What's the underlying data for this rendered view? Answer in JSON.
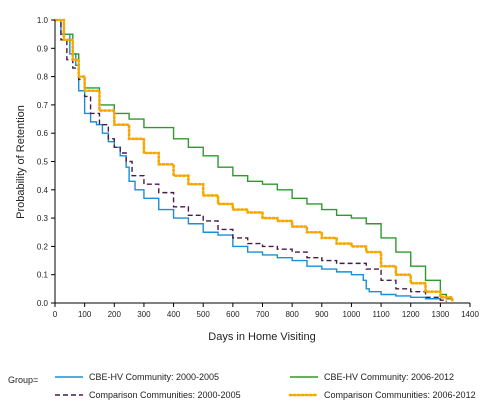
{
  "chart_data": {
    "type": "line",
    "title": "",
    "xlabel": "Days in Home Visiting",
    "ylabel": "Probability of Retention",
    "xlim": [
      0,
      1400
    ],
    "ylim": [
      0,
      1.0
    ],
    "x_ticks": [
      "0",
      "100",
      "200",
      "300",
      "400",
      "500",
      "600",
      "700",
      "800",
      "900",
      "1000",
      "1100",
      "1200",
      "1300",
      "1400"
    ],
    "y_ticks": [
      "0.0",
      "0.1",
      "0.2",
      "0.3",
      "0.4",
      "0.5",
      "0.6",
      "0.7",
      "0.8",
      "0.9",
      "1.0"
    ],
    "grid": false,
    "legend_title": "Group=",
    "legend_position": "bottom",
    "series": [
      {
        "name": "CBE-HV Community: 2000-2005",
        "color": "#1a8fd6",
        "dash": "solid",
        "points": [
          [
            0,
            1.0
          ],
          [
            20,
            0.95
          ],
          [
            50,
            0.88
          ],
          [
            70,
            0.84
          ],
          [
            80,
            0.75
          ],
          [
            100,
            0.67
          ],
          [
            120,
            0.64
          ],
          [
            140,
            0.63
          ],
          [
            160,
            0.6
          ],
          [
            180,
            0.57
          ],
          [
            200,
            0.55
          ],
          [
            220,
            0.52
          ],
          [
            240,
            0.48
          ],
          [
            250,
            0.43
          ],
          [
            270,
            0.4
          ],
          [
            300,
            0.37
          ],
          [
            350,
            0.33
          ],
          [
            400,
            0.3
          ],
          [
            450,
            0.28
          ],
          [
            500,
            0.25
          ],
          [
            550,
            0.24
          ],
          [
            600,
            0.2
          ],
          [
            650,
            0.18
          ],
          [
            700,
            0.17
          ],
          [
            750,
            0.16
          ],
          [
            800,
            0.15
          ],
          [
            850,
            0.13
          ],
          [
            900,
            0.12
          ],
          [
            950,
            0.11
          ],
          [
            1000,
            0.1
          ],
          [
            1040,
            0.08
          ],
          [
            1050,
            0.05
          ],
          [
            1060,
            0.04
          ],
          [
            1100,
            0.03
          ],
          [
            1150,
            0.025
          ],
          [
            1200,
            0.02
          ],
          [
            1250,
            0.015
          ],
          [
            1300,
            0.01
          ]
        ]
      },
      {
        "name": "CBE-HV Community: 2006-2012",
        "color": "#2e9a2e",
        "dash": "solid",
        "points": [
          [
            0,
            1.0
          ],
          [
            30,
            0.95
          ],
          [
            60,
            0.88
          ],
          [
            80,
            0.8
          ],
          [
            100,
            0.76
          ],
          [
            150,
            0.7
          ],
          [
            200,
            0.67
          ],
          [
            250,
            0.65
          ],
          [
            300,
            0.62
          ],
          [
            400,
            0.58
          ],
          [
            450,
            0.55
          ],
          [
            500,
            0.52
          ],
          [
            550,
            0.48
          ],
          [
            600,
            0.45
          ],
          [
            650,
            0.43
          ],
          [
            700,
            0.42
          ],
          [
            750,
            0.4
          ],
          [
            800,
            0.37
          ],
          [
            850,
            0.35
          ],
          [
            900,
            0.33
          ],
          [
            950,
            0.31
          ],
          [
            1000,
            0.3
          ],
          [
            1050,
            0.28
          ],
          [
            1100,
            0.23
          ],
          [
            1150,
            0.18
          ],
          [
            1200,
            0.13
          ],
          [
            1250,
            0.08
          ],
          [
            1300,
            0.03
          ],
          [
            1320,
            0.015
          ],
          [
            1340,
            0.01
          ]
        ]
      },
      {
        "name": "Comparison Communities: 2000-2005",
        "color": "#4a1a48",
        "dash": "dashed",
        "points": [
          [
            0,
            1.0
          ],
          [
            20,
            0.93
          ],
          [
            40,
            0.86
          ],
          [
            60,
            0.83
          ],
          [
            80,
            0.79
          ],
          [
            100,
            0.73
          ],
          [
            120,
            0.67
          ],
          [
            150,
            0.63
          ],
          [
            180,
            0.58
          ],
          [
            200,
            0.55
          ],
          [
            220,
            0.53
          ],
          [
            240,
            0.5
          ],
          [
            260,
            0.45
          ],
          [
            300,
            0.42
          ],
          [
            350,
            0.39
          ],
          [
            400,
            0.34
          ],
          [
            450,
            0.31
          ],
          [
            500,
            0.29
          ],
          [
            550,
            0.26
          ],
          [
            600,
            0.23
          ],
          [
            650,
            0.21
          ],
          [
            700,
            0.2
          ],
          [
            750,
            0.19
          ],
          [
            800,
            0.18
          ],
          [
            850,
            0.16
          ],
          [
            900,
            0.15
          ],
          [
            950,
            0.14
          ],
          [
            1000,
            0.14
          ],
          [
            1050,
            0.12
          ],
          [
            1100,
            0.08
          ],
          [
            1150,
            0.05
          ],
          [
            1200,
            0.04
          ],
          [
            1250,
            0.02
          ],
          [
            1300,
            0.01
          ],
          [
            1320,
            0.005
          ]
        ]
      },
      {
        "name": "Comparison Communities: 2006-2012",
        "color": "#f7a800",
        "dash": "dotted",
        "points": [
          [
            0,
            1.0
          ],
          [
            30,
            0.93
          ],
          [
            60,
            0.86
          ],
          [
            80,
            0.8
          ],
          [
            100,
            0.75
          ],
          [
            150,
            0.68
          ],
          [
            200,
            0.63
          ],
          [
            250,
            0.58
          ],
          [
            300,
            0.53
          ],
          [
            350,
            0.49
          ],
          [
            400,
            0.45
          ],
          [
            450,
            0.42
          ],
          [
            500,
            0.38
          ],
          [
            550,
            0.35
          ],
          [
            600,
            0.33
          ],
          [
            650,
            0.32
          ],
          [
            700,
            0.3
          ],
          [
            750,
            0.29
          ],
          [
            800,
            0.27
          ],
          [
            850,
            0.25
          ],
          [
            900,
            0.23
          ],
          [
            950,
            0.21
          ],
          [
            1000,
            0.2
          ],
          [
            1050,
            0.18
          ],
          [
            1100,
            0.13
          ],
          [
            1150,
            0.1
          ],
          [
            1200,
            0.07
          ],
          [
            1250,
            0.04
          ],
          [
            1300,
            0.02
          ],
          [
            1340,
            0.005
          ]
        ]
      }
    ]
  }
}
